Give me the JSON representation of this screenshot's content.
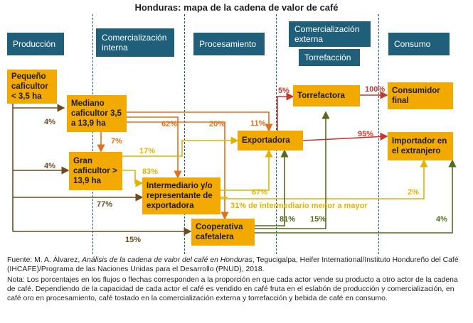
{
  "title": "Honduras: mapa de la cadena de valor de café",
  "stages": {
    "produccion": "Producción",
    "comercializacion_interna": "Comercialización interna",
    "procesamiento": "Procesamiento",
    "comercializacion_externa": "Comercialización externa",
    "torrefaccion": "Torrefacción",
    "consumo": "Consumo"
  },
  "nodes": {
    "pequeno": "Pequeño caficultor < 3,5 ha",
    "mediano": "Mediano caficultor 3,5 a 13,9 ha",
    "gran": "Gran caficultor > 13,9 ha",
    "intermediario": "Intermediario y/o representante de exportadora",
    "cooperativa": "Cooperativa cafetalera",
    "exportadora": "Exportadora",
    "torrefactora": "Torrefactora",
    "consumidor": "Consumidor final",
    "importador": "Importador en el extranjero"
  },
  "flows": {
    "pequeno_mediano": "4%",
    "pequeno_gran": "4%",
    "pequeno_intermediario": "77%",
    "pequeno_cooperativa": "15%",
    "mediano_gran": "7%",
    "mediano_intermediario": "62%",
    "mediano_cooperativa": "20%",
    "mediano_exportadora": "11%",
    "gran_exportadora": "17%",
    "gran_intermediario": "83%",
    "intermediario_exportadora": "67%",
    "intermediario_mayor": "31% de intermediario menor a mayor",
    "intermediario_importador": "2%",
    "exportadora_torrefactora": "5%",
    "exportadora_importador": "95%",
    "torrefactora_consumidor": "100%",
    "cooperativa_exportadora": "81%",
    "cooperativa_torrefactora": "15%",
    "cooperativa_importador": "4%"
  },
  "colors": {
    "node": "#f2a900",
    "stage": "#1f5f7a",
    "red": "#c8372d",
    "yellow": "#e2b400",
    "olive": "#556b1e",
    "brown": "#6e4a1e",
    "orange": "#e0701b"
  },
  "footer": {
    "fuente_prefix": "Fuente: M. A. Álvarez, ",
    "fuente_title": "Análisis de la cadena de valor del café en Honduras",
    "fuente_rest": ", Tegucigalpa, Heifer International/Instituto Hondureño del Café (IHCAFE)/Programa de las Naciones Unidas para el Desarrollo (PNUD), 2018.",
    "nota": "Nota: Los porcentajes en los flujos o flechas corresponden a la proporción en que cada actor vende su producto a otro actor de la cadena de café. Dependiendo de la capacidad de cada actor el café es vendido en café fruta en el eslabón de producción y comercialización, en café oro en procesamiento, café tostado en la comercialización externa y torrefacción y bebida de café en consumo."
  }
}
